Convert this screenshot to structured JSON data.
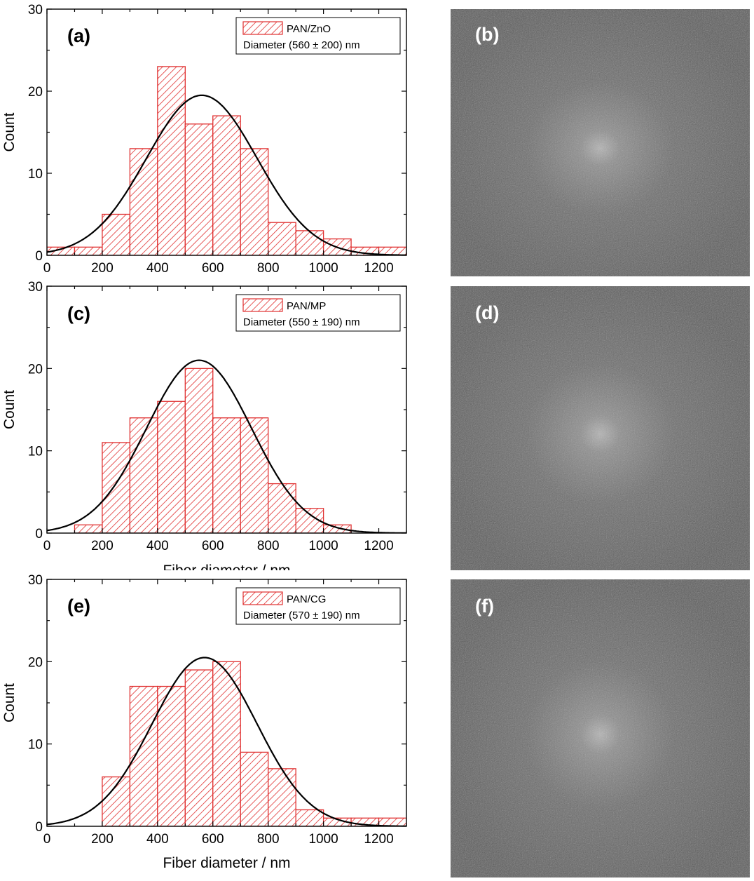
{
  "chart_data": [
    {
      "type": "bar",
      "panel": "(a)",
      "title": "",
      "xlabel": "",
      "ylabel": "Count",
      "xlim": [
        0,
        1300
      ],
      "ylim": [
        0,
        30
      ],
      "xticks": [
        0,
        200,
        400,
        600,
        800,
        1000,
        1200
      ],
      "yticks": [
        0,
        10,
        20,
        30
      ],
      "bin_width": 100,
      "bin_starts": [
        0,
        100,
        200,
        300,
        400,
        500,
        600,
        700,
        800,
        900,
        1000,
        1100,
        1200
      ],
      "values": [
        1,
        1,
        5,
        13,
        23,
        16,
        17,
        13,
        4,
        3,
        2,
        1,
        1
      ],
      "legend": {
        "series": "PAN/ZnO",
        "note": "Diameter (560 ± 200) nm",
        "position": "top-right"
      },
      "fit": {
        "type": "gaussian",
        "peak_x": 560,
        "peak_y": 19.5,
        "sigma": 200
      },
      "colors": {
        "bar": "#e03030",
        "fit": "#000000"
      }
    },
    {
      "type": "bar",
      "panel": "(c)",
      "title": "",
      "xlabel": "Fiber diameter / nm",
      "ylabel": "Count",
      "xlim": [
        0,
        1300
      ],
      "ylim": [
        0,
        30
      ],
      "xticks": [
        0,
        200,
        400,
        600,
        800,
        1000,
        1200
      ],
      "yticks": [
        0,
        10,
        20,
        30
      ],
      "bin_width": 100,
      "bin_starts": [
        100,
        200,
        300,
        400,
        500,
        600,
        700,
        800,
        900,
        1000
      ],
      "values": [
        1,
        11,
        14,
        16,
        20,
        14,
        14,
        6,
        3,
        1
      ],
      "legend": {
        "series": "PAN/MP",
        "note": "Diameter (550 ± 190) nm",
        "position": "top-right"
      },
      "fit": {
        "type": "gaussian",
        "peak_x": 550,
        "peak_y": 21,
        "sigma": 190
      },
      "colors": {
        "bar": "#e03030",
        "fit": "#000000"
      }
    },
    {
      "type": "bar",
      "panel": "(e)",
      "title": "",
      "xlabel": "Fiber diameter / nm",
      "ylabel": "Count",
      "xlim": [
        0,
        1300
      ],
      "ylim": [
        0,
        30
      ],
      "xticks": [
        0,
        200,
        400,
        600,
        800,
        1000,
        1200
      ],
      "yticks": [
        0,
        10,
        20,
        30
      ],
      "bin_width": 100,
      "bin_starts": [
        200,
        300,
        400,
        500,
        600,
        700,
        800,
        900,
        1000,
        1100,
        1200
      ],
      "values": [
        6,
        17,
        17,
        19,
        20,
        9,
        7,
        2,
        1,
        1,
        1
      ],
      "legend": {
        "series": "PAN/CG",
        "note": "Diameter (570 ± 190) nm",
        "position": "top-right"
      },
      "fit": {
        "type": "gaussian",
        "peak_x": 570,
        "peak_y": 20.5,
        "sigma": 190
      },
      "colors": {
        "bar": "#e03030",
        "fit": "#000000"
      }
    }
  ],
  "images": [
    {
      "label": "(b)"
    },
    {
      "label": "(d)"
    },
    {
      "label": "(f)"
    }
  ]
}
